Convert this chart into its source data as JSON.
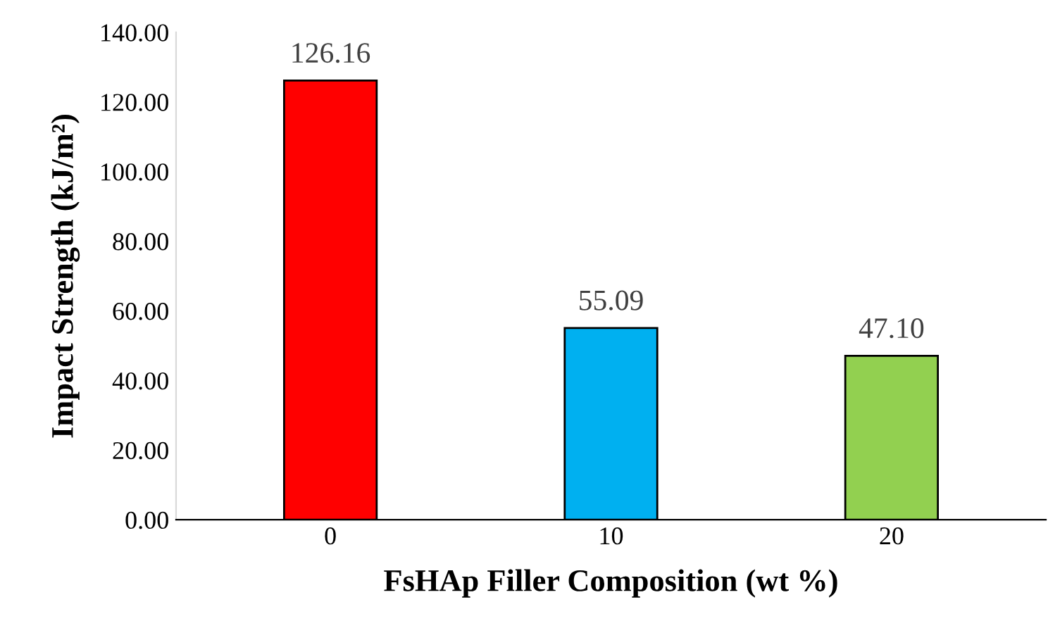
{
  "chart_data": {
    "type": "bar",
    "xlabel": "FsHAp Filler Composition (wt %)",
    "ylabel": "Impact Strength (kJ/m²)",
    "categories": [
      "0",
      "10",
      "20"
    ],
    "values": [
      126.16,
      55.09,
      47.1
    ],
    "colors": [
      "#ff0000",
      "#00b0f0",
      "#92d050"
    ],
    "value_labels": [
      "126.16",
      "55.09",
      "47.10"
    ],
    "ylim": [
      0,
      140
    ],
    "yticks": [
      {
        "value": 0,
        "label": "0.00"
      },
      {
        "value": 20,
        "label": "20.00"
      },
      {
        "value": 40,
        "label": "40.00"
      },
      {
        "value": 60,
        "label": "60.00"
      },
      {
        "value": 80,
        "label": "80.00"
      },
      {
        "value": 100,
        "label": "100.00"
      },
      {
        "value": 120,
        "label": "120.00"
      },
      {
        "value": 140,
        "label": "140.00"
      }
    ],
    "grid": false,
    "legend": false
  }
}
